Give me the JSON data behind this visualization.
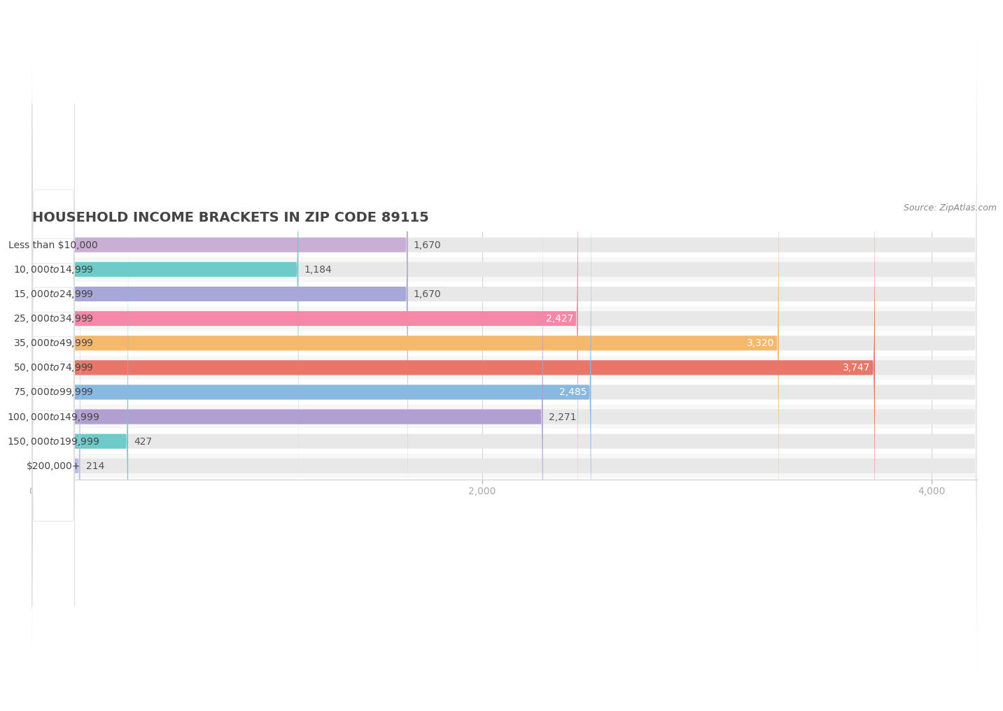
{
  "title": "HOUSEHOLD INCOME BRACKETS IN ZIP CODE 89115",
  "source": "Source: ZipAtlas.com",
  "categories": [
    "Less than $10,000",
    "$10,000 to $14,999",
    "$15,000 to $24,999",
    "$25,000 to $34,999",
    "$35,000 to $49,999",
    "$50,000 to $74,999",
    "$75,000 to $99,999",
    "$100,000 to $149,999",
    "$150,000 to $199,999",
    "$200,000+"
  ],
  "values": [
    1670,
    1184,
    1670,
    2427,
    3320,
    3747,
    2485,
    2271,
    427,
    214
  ],
  "bar_colors": [
    "#c9afd4",
    "#6dccc9",
    "#a8a8d8",
    "#f787a8",
    "#f5b96e",
    "#e8776a",
    "#89b8e0",
    "#b09fd0",
    "#6dccc9",
    "#b8bce8"
  ],
  "value_label_inside": [
    false,
    false,
    false,
    true,
    true,
    true,
    true,
    false,
    false,
    false
  ],
  "xlim": [
    0,
    4200
  ],
  "xticks": [
    0,
    2000,
    4000
  ],
  "background_color": "#ffffff",
  "row_alt_color": "#f7f7f7",
  "bar_background_color": "#e8e8e8",
  "title_fontsize": 14,
  "source_fontsize": 9,
  "value_fontsize": 10,
  "category_fontsize": 10
}
